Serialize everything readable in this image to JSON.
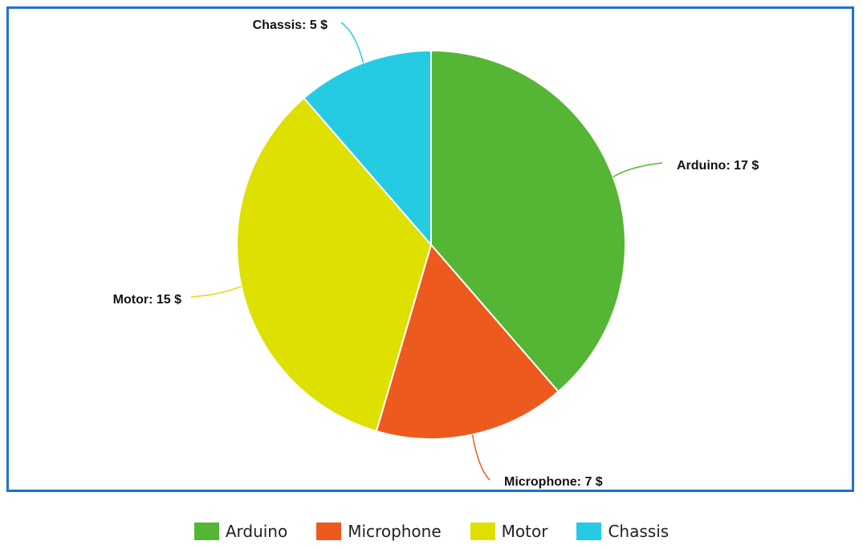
{
  "chart_data": {
    "type": "pie",
    "unit": "$",
    "slices": [
      {
        "label": "Arduino",
        "value": 17,
        "color": "#55b534",
        "data_label": "Arduino: 17 $"
      },
      {
        "label": "Microphone",
        "value": 7,
        "color": "#ed5a1e",
        "data_label": "Microphone: 7 $"
      },
      {
        "label": "Motor",
        "value": 15,
        "color": "#dde000",
        "data_label": "Motor: 15 $"
      },
      {
        "label": "Chassis",
        "value": 5,
        "color": "#25cbe3",
        "data_label": "Chassis: 5 $"
      }
    ],
    "legend_position": "bottom"
  },
  "colors": {
    "frame_border": "#1f73c9"
  }
}
